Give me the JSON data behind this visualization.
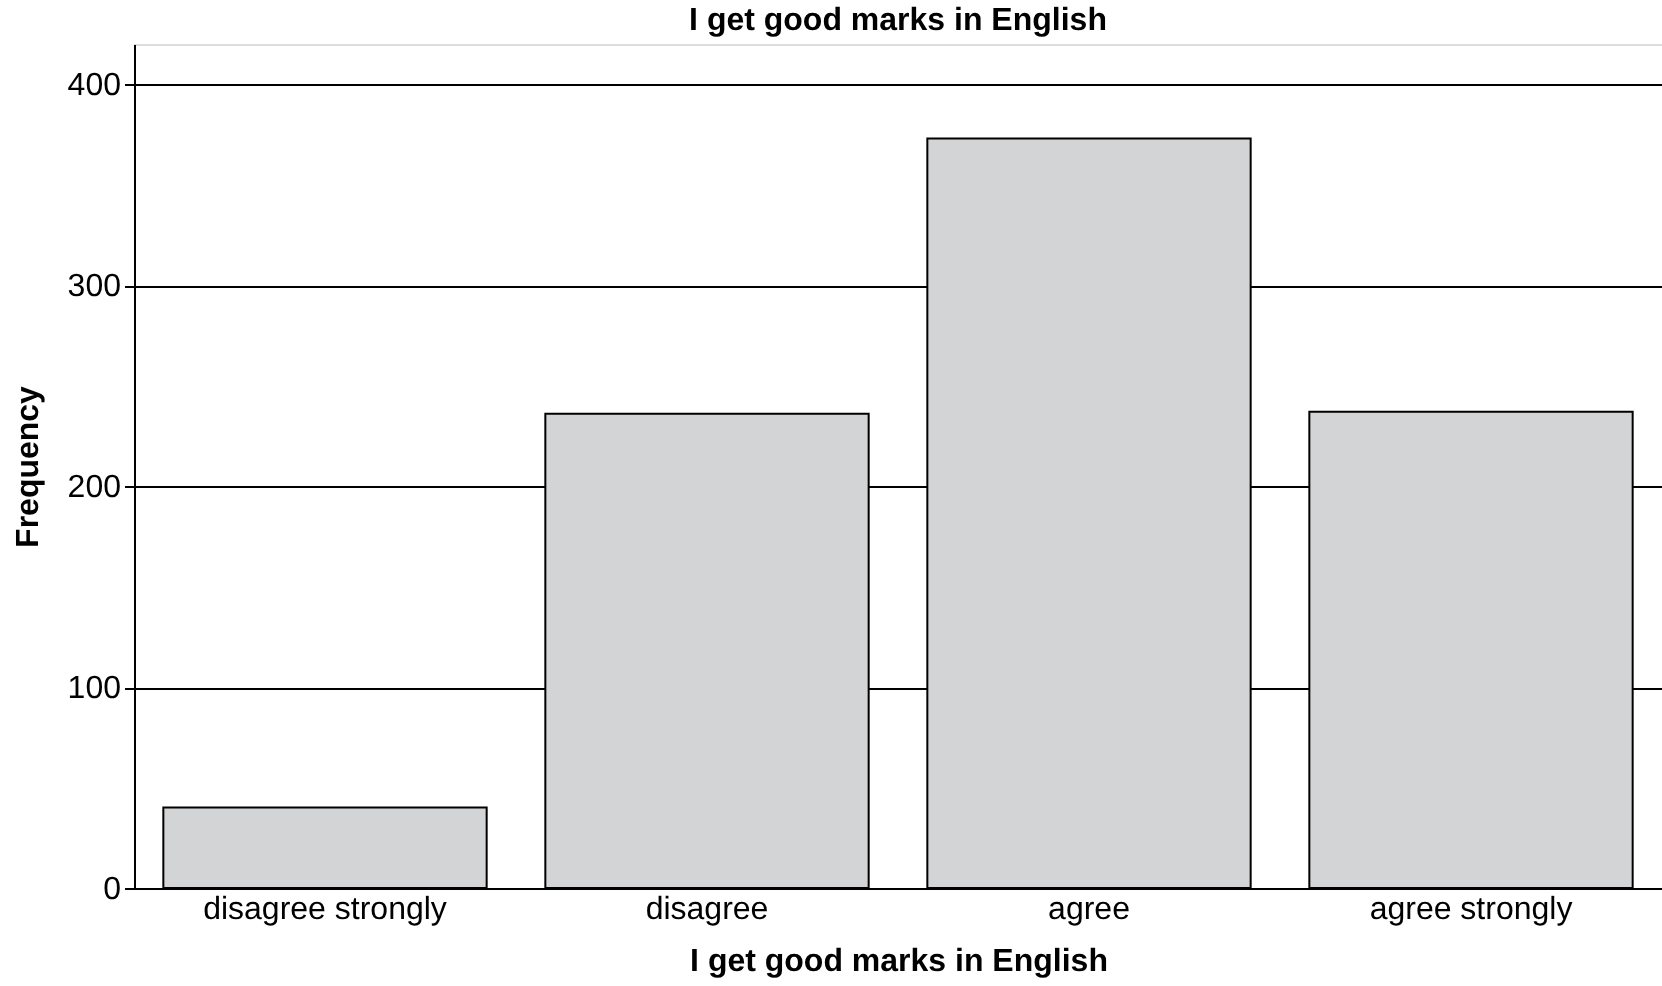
{
  "chart_data": {
    "type": "bar",
    "title": "I get good marks in English",
    "xlabel": "I get good marks in English",
    "ylabel": "Frequency",
    "categories": [
      "disagree strongly",
      "disagree",
      "agree",
      "agree strongly"
    ],
    "values": [
      40,
      236,
      373,
      237
    ],
    "color": "#d3d4d6",
    "ylim": [
      0,
      420
    ],
    "yticks": [
      0,
      100,
      200,
      300,
      400
    ],
    "grid": "y"
  }
}
